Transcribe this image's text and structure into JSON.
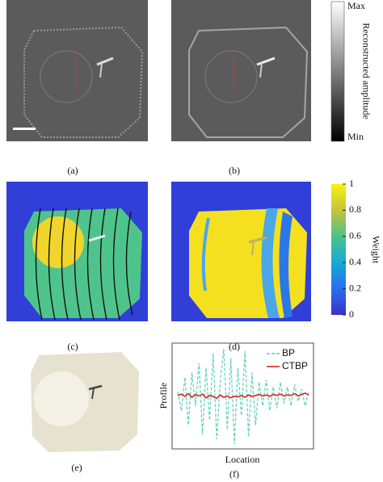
{
  "panels": {
    "a": {
      "label": "(a)"
    },
    "b": {
      "label": "(b)"
    },
    "c": {
      "label": "(c)"
    },
    "d": {
      "label": "(d)"
    },
    "e": {
      "label": "(e)"
    },
    "f": {
      "label": "(f)"
    }
  },
  "colorbar_gray": {
    "max_label": "Max",
    "min_label": "Min",
    "title": "Reconstructed amplitude"
  },
  "colorbar_weight": {
    "title": "Weight",
    "lim": [
      0,
      1
    ],
    "ticks": [
      0,
      0.2,
      0.4,
      0.6,
      0.8,
      1
    ]
  },
  "chart_data": {
    "type": "line",
    "xlabel": "Location",
    "ylabel": "Profile",
    "series": [
      {
        "name": "BP",
        "color": "#5fd1b8",
        "values": [
          0.1,
          -0.3,
          0.4,
          -0.6,
          0.5,
          -0.2,
          0.7,
          -0.8,
          0.6,
          -0.5,
          0.9,
          -0.9,
          0.3,
          1.0,
          -0.7,
          0.8,
          -1.0,
          0.6,
          -0.4,
          0.95,
          -0.85,
          0.5,
          -0.6,
          0.3,
          -0.2,
          0.35,
          -0.3,
          0.2,
          -0.25,
          0.3,
          -0.15,
          0.2,
          -0.2,
          0.25,
          -0.1,
          0.15,
          -0.2,
          0.1
        ]
      },
      {
        "name": "CTBP",
        "color": "#d62728",
        "values": [
          0.02,
          0.05,
          0.0,
          0.06,
          -0.02,
          0.04,
          0.01,
          0.05,
          -0.03,
          0.02,
          0.0,
          -0.04,
          0.03,
          -0.02,
          0.01,
          -0.03,
          0.0,
          -0.01,
          0.02,
          -0.02,
          0.03,
          0.0,
          0.02,
          0.04,
          0.01,
          0.03,
          0.0,
          0.04,
          0.02,
          0.05,
          0.01,
          0.03,
          0.02,
          0.06,
          0.01,
          0.04,
          0.07,
          0.03
        ]
      }
    ]
  }
}
